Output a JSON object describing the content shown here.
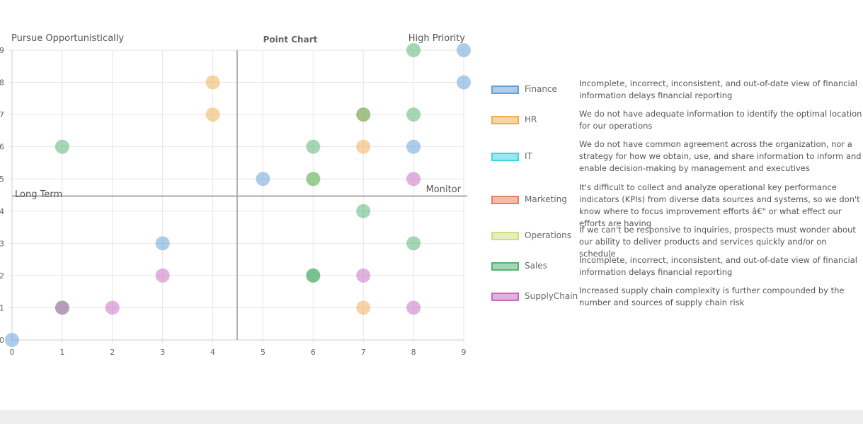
{
  "chart_data": {
    "type": "scatter",
    "title": "Point Chart",
    "xlim": [
      0,
      9
    ],
    "ylim": [
      0,
      9
    ],
    "x_ticks": [
      0,
      1,
      2,
      3,
      4,
      5,
      6,
      7,
      8,
      9
    ],
    "y_ticks": [
      0,
      1,
      2,
      3,
      4,
      5,
      6,
      7,
      8,
      9
    ],
    "grid": true,
    "legend_position": "right",
    "quadrant_labels": {
      "top_left": "Pursue Opportunistically",
      "top_right": "High Priority",
      "bottom_left": "Long Term",
      "bottom_right": "Monitor"
    },
    "series": [
      {
        "name": "Finance",
        "color": "#5b9bd5",
        "points": [
          [
            9,
            9
          ],
          [
            9,
            8
          ],
          [
            8,
            6
          ],
          [
            5,
            5
          ],
          [
            3,
            3
          ],
          [
            0,
            0
          ]
        ],
        "description": "Incomplete, incorrect, inconsistent, and out-of-date view of financial information delays financial reporting"
      },
      {
        "name": "HR",
        "color": "#f0a94b",
        "points": [
          [
            4,
            8
          ],
          [
            4,
            7
          ],
          [
            7,
            7
          ],
          [
            7,
            6
          ],
          [
            7,
            1
          ]
        ],
        "description": "We do not have adequate information to identify the optimal location for our operations"
      },
      {
        "name": "IT",
        "color": "#36d1dc",
        "points": [],
        "description": "We do not have common agreement across the organization, nor a strategy for how we obtain, use, and share information to inform and enable decision-making by management and executives"
      },
      {
        "name": "Marketing",
        "color": "#e07b55",
        "points": [],
        "description": "It's difficult to collect and analyze operational key performance indicators (KPIs) from diverse data sources and systems, so we don't know where to focus improvement efforts â€\" or what effect our efforts are having"
      },
      {
        "name": "Operations",
        "color": "#c9de7a",
        "points": [
          [
            6,
            5
          ]
        ],
        "description": "If we can't be responsive to inquiries, prospects must wonder about our ability to deliver products and services quickly and/or on schedule"
      },
      {
        "name": "Sales",
        "color": "#4daf6b",
        "points": [
          [
            8,
            9
          ],
          [
            8,
            7
          ],
          [
            7,
            7
          ],
          [
            1,
            6
          ],
          [
            6,
            6
          ],
          [
            6,
            5
          ],
          [
            7,
            4
          ],
          [
            8,
            3
          ],
          [
            6,
            2
          ],
          [
            6,
            2
          ],
          [
            1,
            1
          ]
        ],
        "description": "Incomplete, incorrect, inconsistent, and out-of-date view of financial information delays financial reporting"
      },
      {
        "name": "SupplyChain",
        "color": "#c565bf",
        "points": [
          [
            8,
            5
          ],
          [
            3,
            2
          ],
          [
            7,
            2
          ],
          [
            2,
            1
          ],
          [
            8,
            1
          ],
          [
            1,
            1
          ]
        ],
        "description": "Increased supply chain complexity is further compounded by the number and sources of supply chain risk"
      }
    ]
  }
}
